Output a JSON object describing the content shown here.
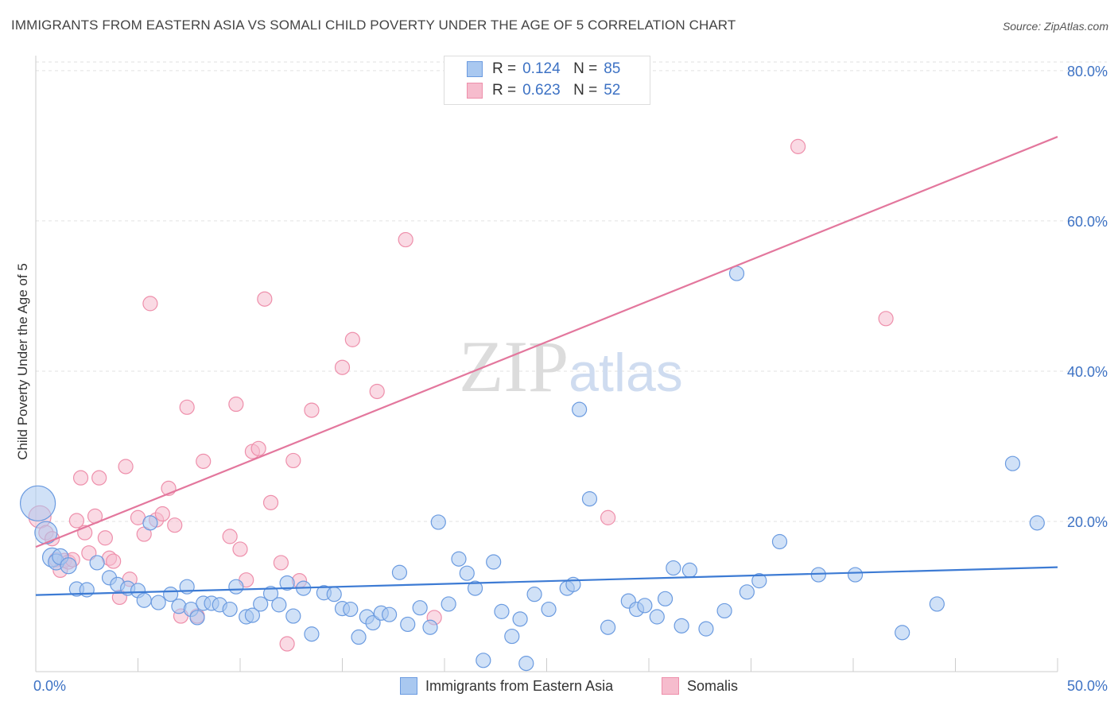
{
  "header": {
    "title": "IMMIGRANTS FROM EASTERN ASIA VS SOMALI CHILD POVERTY UNDER THE AGE OF 5 CORRELATION CHART",
    "source": "Source: ZipAtlas.com"
  },
  "watermark": {
    "part1": "ZIP",
    "part2": "atlas"
  },
  "legend": {
    "rows": [
      {
        "r_label": "R =",
        "r_value": "0.124",
        "n_label": "N =",
        "n_value": "85"
      },
      {
        "r_label": "R =",
        "r_value": "0.623",
        "n_label": "N =",
        "n_value": "52"
      }
    ]
  },
  "colors": {
    "blue_fill": "#a9c8f0",
    "blue_stroke": "#6b9be0",
    "blue_line": "#3d7bd4",
    "pink_fill": "#f6bccd",
    "pink_stroke": "#ee8fab",
    "pink_line": "#e3779d",
    "tick_label": "#3d72c4"
  },
  "chart_data": {
    "type": "scatter",
    "title": "IMMIGRANTS FROM EASTERN ASIA VS SOMALI CHILD POVERTY UNDER THE AGE OF 5 CORRELATION CHART",
    "xlabel": "",
    "ylabel": "Child Poverty Under the Age of 5",
    "xlim": [
      0,
      50
    ],
    "ylim": [
      0,
      82
    ],
    "x_tick_labels": [
      "0.0%",
      "50.0%"
    ],
    "y_ticks": [
      20,
      40,
      60,
      80
    ],
    "y_tick_labels": [
      "20.0%",
      "40.0%",
      "60.0%",
      "80.0%"
    ],
    "grid": true,
    "legend_position": "top-center",
    "series": [
      {
        "name": "Immigrants from Eastern Asia",
        "color": "#a9c8f0",
        "trendline": {
          "x": [
            0,
            50
          ],
          "y": [
            10.2,
            13.9
          ]
        },
        "points": [
          [
            0.1,
            22.4,
            22
          ],
          [
            0.5,
            18.5,
            14
          ],
          [
            0.8,
            15.2,
            12
          ],
          [
            1.0,
            14.6,
            10
          ],
          [
            1.2,
            15.3,
            10
          ],
          [
            1.6,
            14.1,
            10
          ],
          [
            2.0,
            11.0,
            9
          ],
          [
            2.5,
            10.9,
            9
          ],
          [
            3.0,
            14.5,
            9
          ],
          [
            3.6,
            12.5,
            9
          ],
          [
            4.0,
            11.6,
            9
          ],
          [
            4.5,
            11.1,
            9
          ],
          [
            5.0,
            10.8,
            9
          ],
          [
            5.3,
            9.5,
            9
          ],
          [
            5.6,
            19.8,
            9
          ],
          [
            6.0,
            9.2,
            9
          ],
          [
            6.6,
            10.3,
            9
          ],
          [
            7.0,
            8.7,
            9
          ],
          [
            7.4,
            11.3,
            9
          ],
          [
            7.6,
            8.3,
            9
          ],
          [
            7.9,
            7.2,
            9
          ],
          [
            8.2,
            9.1,
            9
          ],
          [
            8.6,
            9.1,
            9
          ],
          [
            9.0,
            8.9,
            9
          ],
          [
            9.5,
            8.3,
            9
          ],
          [
            9.8,
            11.3,
            9
          ],
          [
            10.3,
            7.3,
            9
          ],
          [
            10.6,
            7.5,
            9
          ],
          [
            11.0,
            9.0,
            9
          ],
          [
            11.5,
            10.4,
            9
          ],
          [
            11.9,
            8.9,
            9
          ],
          [
            12.3,
            11.8,
            9
          ],
          [
            12.6,
            7.4,
            9
          ],
          [
            13.1,
            11.1,
            9
          ],
          [
            13.5,
            5.0,
            9
          ],
          [
            14.1,
            10.5,
            9
          ],
          [
            14.6,
            10.3,
            9
          ],
          [
            15.0,
            8.4,
            9
          ],
          [
            15.4,
            8.3,
            9
          ],
          [
            15.8,
            4.6,
            9
          ],
          [
            16.2,
            7.3,
            9
          ],
          [
            16.5,
            6.5,
            9
          ],
          [
            16.9,
            7.8,
            9
          ],
          [
            17.3,
            7.6,
            9
          ],
          [
            17.8,
            13.2,
            9
          ],
          [
            18.2,
            6.3,
            9
          ],
          [
            18.8,
            8.5,
            9
          ],
          [
            19.3,
            5.9,
            9
          ],
          [
            19.7,
            19.9,
            9
          ],
          [
            20.2,
            9.0,
            9
          ],
          [
            20.7,
            15.0,
            9
          ],
          [
            21.1,
            13.1,
            9
          ],
          [
            21.5,
            11.1,
            9
          ],
          [
            21.9,
            1.5,
            9
          ],
          [
            22.4,
            14.6,
            9
          ],
          [
            22.8,
            8.0,
            9
          ],
          [
            23.3,
            4.7,
            9
          ],
          [
            23.7,
            7.0,
            9
          ],
          [
            24.0,
            1.1,
            9
          ],
          [
            24.4,
            10.3,
            9
          ],
          [
            25.1,
            8.3,
            9
          ],
          [
            26.0,
            11.1,
            9
          ],
          [
            26.3,
            11.6,
            9
          ],
          [
            26.6,
            34.9,
            9
          ],
          [
            27.1,
            23.0,
            9
          ],
          [
            28.0,
            5.9,
            9
          ],
          [
            29.0,
            9.4,
            9
          ],
          [
            29.4,
            8.3,
            9
          ],
          [
            29.8,
            8.8,
            9
          ],
          [
            30.4,
            7.3,
            9
          ],
          [
            30.8,
            9.7,
            9
          ],
          [
            31.2,
            13.8,
            9
          ],
          [
            31.6,
            6.1,
            9
          ],
          [
            32.0,
            13.5,
            9
          ],
          [
            32.8,
            5.7,
            9
          ],
          [
            33.7,
            8.1,
            9
          ],
          [
            34.3,
            53.0,
            9
          ],
          [
            34.8,
            10.6,
            9
          ],
          [
            35.4,
            12.1,
            9
          ],
          [
            36.4,
            17.3,
            9
          ],
          [
            38.3,
            12.9,
            9
          ],
          [
            40.1,
            12.9,
            9
          ],
          [
            42.4,
            5.2,
            9
          ],
          [
            47.8,
            27.7,
            9
          ],
          [
            49.0,
            19.8,
            9
          ],
          [
            44.1,
            9.0,
            9
          ]
        ]
      },
      {
        "name": "Somalis",
        "color": "#f6bccd",
        "trendline": {
          "x": [
            0,
            50
          ],
          "y": [
            16.6,
            71.2
          ]
        },
        "points": [
          [
            0.2,
            20.6,
            14
          ],
          [
            0.5,
            18.5,
            9
          ],
          [
            0.8,
            17.7,
            9
          ],
          [
            1.0,
            14.9,
            9
          ],
          [
            1.2,
            13.5,
            9
          ],
          [
            1.4,
            14.8,
            9
          ],
          [
            1.6,
            14.6,
            9
          ],
          [
            1.8,
            14.9,
            9
          ],
          [
            2.0,
            20.1,
            9
          ],
          [
            2.2,
            25.8,
            9
          ],
          [
            2.4,
            18.5,
            9
          ],
          [
            2.6,
            15.8,
            9
          ],
          [
            2.9,
            20.7,
            9
          ],
          [
            3.1,
            25.8,
            9
          ],
          [
            3.4,
            17.8,
            9
          ],
          [
            3.6,
            15.1,
            9
          ],
          [
            3.8,
            14.7,
            9
          ],
          [
            4.1,
            9.9,
            9
          ],
          [
            4.4,
            27.3,
            9
          ],
          [
            4.6,
            12.3,
            9
          ],
          [
            5.0,
            20.5,
            9
          ],
          [
            5.3,
            18.3,
            9
          ],
          [
            5.6,
            49.0,
            9
          ],
          [
            5.9,
            20.2,
            9
          ],
          [
            6.2,
            21.0,
            9
          ],
          [
            6.5,
            24.4,
            9
          ],
          [
            6.8,
            19.5,
            9
          ],
          [
            7.1,
            7.4,
            9
          ],
          [
            7.4,
            35.2,
            9
          ],
          [
            7.9,
            7.4,
            9
          ],
          [
            8.2,
            28.0,
            9
          ],
          [
            9.5,
            18.0,
            9
          ],
          [
            9.8,
            35.6,
            9
          ],
          [
            10.0,
            16.3,
            9
          ],
          [
            10.3,
            12.2,
            9
          ],
          [
            10.6,
            29.3,
            9
          ],
          [
            10.9,
            29.7,
            9
          ],
          [
            11.2,
            49.6,
            9
          ],
          [
            11.5,
            22.5,
            9
          ],
          [
            12.0,
            14.5,
            9
          ],
          [
            12.3,
            3.7,
            9
          ],
          [
            12.6,
            28.1,
            9
          ],
          [
            12.9,
            12.1,
            9
          ],
          [
            13.5,
            34.8,
            9
          ],
          [
            15.0,
            40.5,
            9
          ],
          [
            15.5,
            44.2,
            9
          ],
          [
            16.7,
            37.3,
            9
          ],
          [
            19.5,
            7.2,
            9
          ],
          [
            18.1,
            57.5,
            9
          ],
          [
            28.0,
            20.5,
            9
          ],
          [
            37.3,
            69.9,
            9
          ],
          [
            41.6,
            47.0,
            9
          ]
        ]
      }
    ]
  }
}
